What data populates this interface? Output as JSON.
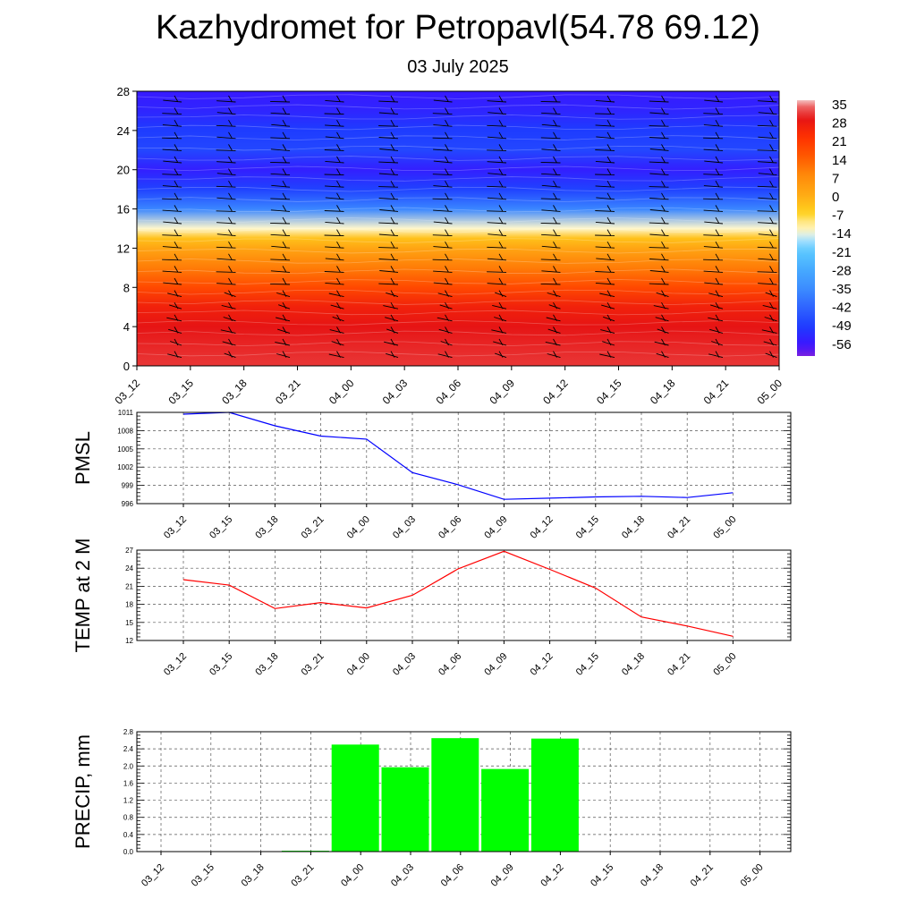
{
  "title": "Kazhydromet for Petropavl(54.78 69.12)",
  "subtitle": "03 July 2025",
  "chart_data": [
    {
      "type": "heatmap",
      "name": "upper-air-temperature-cross-section",
      "x_categories": [
        "03_12",
        "03_15",
        "03_18",
        "03_21",
        "04_00",
        "04_03",
        "04_06",
        "04_09",
        "04_12",
        "04_15",
        "04_18",
        "04_21",
        "05_00"
      ],
      "y_ticks": [
        0,
        4,
        8,
        12,
        16,
        20,
        24,
        28
      ],
      "ylim": [
        0,
        28
      ],
      "colorbar_labels": [
        "35",
        "28",
        "21",
        "14",
        "7",
        "0",
        "-7",
        "-14",
        "-21",
        "-28",
        "-35",
        "-42",
        "-49",
        "-56"
      ],
      "wind_barbs": true,
      "approx_levels": [
        0,
        2,
        4,
        6,
        8,
        10,
        12,
        13,
        14,
        16,
        18,
        20,
        22,
        24,
        26,
        28
      ],
      "approx_values": [
        30,
        29,
        28,
        25,
        17,
        9,
        1,
        -4,
        -14,
        -36,
        -48,
        -54,
        -47,
        -49,
        -53,
        -55
      ]
    },
    {
      "type": "line",
      "ylabel": "PMSL",
      "x_categories": [
        "03_12",
        "03_15",
        "03_18",
        "03_21",
        "04_00",
        "04_03",
        "04_06",
        "04_09",
        "04_12",
        "04_15",
        "04_18",
        "04_21",
        "05_00"
      ],
      "series": [
        {
          "color": "#0000ff",
          "values": [
            1010.7,
            1011.0,
            1008.8,
            1007.1,
            1006.6,
            1001.1,
            999.1,
            996.7,
            996.9,
            997.1,
            997.2,
            997.0,
            997.8
          ]
        }
      ],
      "yticks": [
        "996",
        "999",
        "1002",
        "1005",
        "1008",
        "1011"
      ],
      "ylim": [
        996,
        1011
      ],
      "grid": true
    },
    {
      "type": "line",
      "ylabel": "TEMP at 2 M",
      "x_categories": [
        "03_12",
        "03_15",
        "03_18",
        "03_21",
        "04_00",
        "04_03",
        "04_06",
        "04_09",
        "04_12",
        "04_15",
        "04_18",
        "04_21",
        "05_00"
      ],
      "series": [
        {
          "color": "#ff0000",
          "values": [
            22.1,
            21.2,
            17.3,
            18.3,
            17.4,
            19.5,
            23.9,
            26.8,
            23.8,
            20.7,
            15.9,
            14.4,
            12.7
          ]
        }
      ],
      "yticks": [
        "12",
        "15",
        "18",
        "21",
        "24",
        "27"
      ],
      "ylim": [
        12,
        27
      ],
      "grid": true
    },
    {
      "type": "bar",
      "ylabel": "PRECIP, mm",
      "categories": [
        "03_12",
        "03_15",
        "03_18",
        "03_21",
        "04_00",
        "04_03",
        "04_06",
        "04_09",
        "04_12",
        "04_15",
        "04_18",
        "04_21",
        "05_00"
      ],
      "values": [
        0,
        0,
        0,
        0.02,
        2.5,
        1.97,
        2.65,
        1.93,
        2.64,
        0,
        0,
        0,
        0
      ],
      "color": "#00ff00",
      "yticks": [
        "0.0",
        "0.4",
        "0.8",
        "1.2",
        "1.6",
        "2.0",
        "2.4",
        "2.8"
      ],
      "ylim": [
        0,
        2.8
      ],
      "grid": true
    }
  ]
}
